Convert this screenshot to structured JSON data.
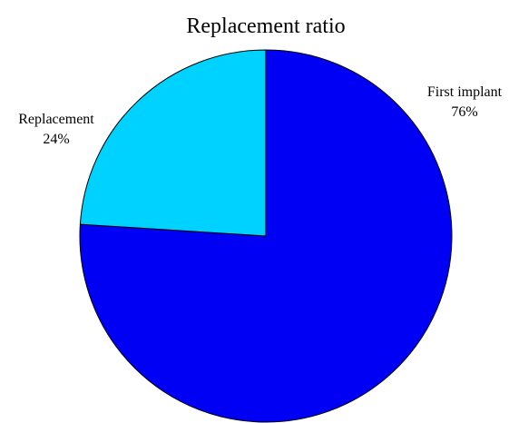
{
  "chart_data": {
    "type": "pie",
    "title": "Replacement ratio",
    "slices": [
      {
        "label": "First implant",
        "value": 76,
        "value_label": "76%",
        "color": "#0000F5"
      },
      {
        "label": "Replacement",
        "value": 24,
        "value_label": "24%",
        "color": "#00D2FF"
      }
    ],
    "start": "12 o'clock",
    "direction": "clockwise",
    "edge_color": "#000000"
  }
}
